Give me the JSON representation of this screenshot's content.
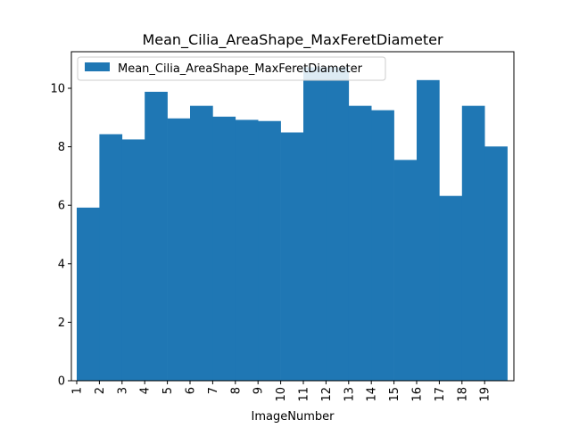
{
  "chart_data": {
    "type": "bar",
    "title": "Mean_Cilia_AreaShape_MaxFeretDiameter",
    "xlabel": "ImageNumber",
    "ylabel": "",
    "categories": [
      "1",
      "2",
      "3",
      "4",
      "5",
      "6",
      "7",
      "8",
      "9",
      "10",
      "11",
      "12",
      "13",
      "14",
      "15",
      "16",
      "17",
      "18",
      "19"
    ],
    "series": [
      {
        "name": "Mean_Cilia_AreaShape_MaxFeretDiameter",
        "color": "#1f77b4",
        "values": [
          5.92,
          8.43,
          8.25,
          9.88,
          8.97,
          9.4,
          9.03,
          8.92,
          8.88,
          8.49,
          10.72,
          10.72,
          9.4,
          9.25,
          7.55,
          10.28,
          6.32,
          9.4,
          8.01
        ]
      }
    ],
    "ylim": [
      0,
      11.25
    ],
    "yticks": [
      0,
      2,
      4,
      6,
      8,
      10
    ],
    "legend_position": "top-left",
    "grid": false
  }
}
